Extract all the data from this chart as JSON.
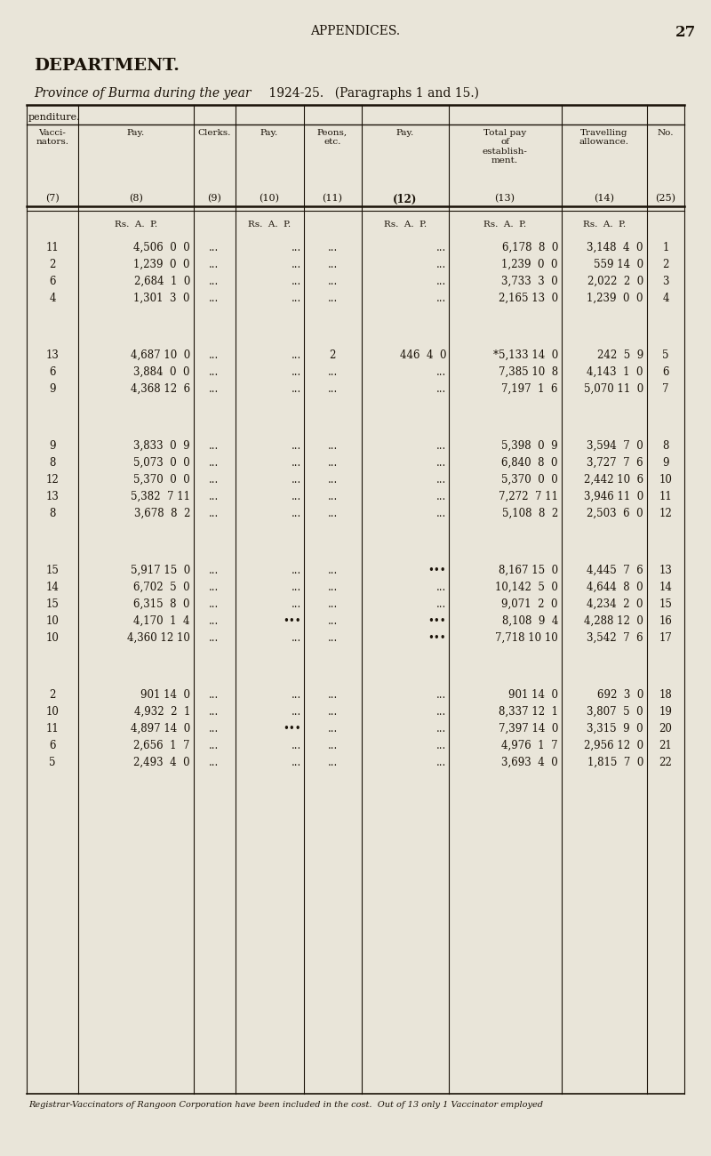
{
  "bg_color": "#e9e5d9",
  "text_color": "#1a1208",
  "line_color": "#1a1208",
  "page_title": "APPENDICES.",
  "page_number": "27",
  "section_title": "DEPARTMENT.",
  "subtitle_italic": "Province of Burma during the year",
  "subtitle_year": "1924-25.",
  "subtitle_rest": "  (Paragraphs 1 and 15.)",
  "partial_header": "penditure.",
  "footnote": "Registrar-Vaccinators of Rangoon Corporation have been included in the cost.  Out of 13 only 1 Vaccinator employed",
  "rows": [
    {
      "vac": "11",
      "pay8": "4,506  0  0",
      "cl9": "...",
      "pay10": "...",
      "pe11": "...",
      "pay12": "...",
      "total13": "6,178  8  0",
      "trav14": "3,148  4  0",
      "no": "1"
    },
    {
      "vac": "2",
      "pay8": "1,239  0  0",
      "cl9": "...",
      "pay10": "...",
      "pe11": "...",
      "pay12": "...",
      "total13": "1,239  0  0",
      "trav14": "559 14  0",
      "no": "2"
    },
    {
      "vac": "6",
      "pay8": "2,684  1  0",
      "cl9": "...",
      "pay10": "...",
      "pe11": "...",
      "pay12": "...",
      "total13": "3,733  3  0",
      "trav14": "2,022  2  0",
      "no": "3"
    },
    {
      "vac": "4",
      "pay8": "1,301  3  0",
      "cl9": "...",
      "pay10": "...",
      "pe11": "...",
      "pay12": "...",
      "total13": "2,165 13  0",
      "trav14": "1,239  0  0",
      "no": "4"
    },
    {
      "vac": "",
      "pay8": "",
      "cl9": "",
      "pay10": "",
      "pe11": "",
      "pay12": "",
      "total13": "",
      "trav14": "",
      "no": ""
    },
    {
      "vac": "13",
      "pay8": "4,687 10  0",
      "cl9": "...",
      "pay10": "...",
      "pe11": "2",
      "pay12": "446  4  0",
      "total13": "*5,133 14  0",
      "trav14": "242  5  9",
      "no": "5"
    },
    {
      "vac": "6",
      "pay8": "3,884  0  0",
      "cl9": "...",
      "pay10": "...",
      "pe11": "...",
      "pay12": "...",
      "total13": "7,385 10  8",
      "trav14": "4,143  1  0",
      "no": "6"
    },
    {
      "vac": "9",
      "pay8": "4,368 12  6",
      "cl9": "...",
      "pay10": "...",
      "pe11": "...",
      "pay12": "...",
      "total13": "7,197  1  6",
      "trav14": "5,070 11  0",
      "no": "7"
    },
    {
      "vac": "",
      "pay8": "",
      "cl9": "",
      "pay10": "",
      "pe11": "",
      "pay12": "",
      "total13": "",
      "trav14": "",
      "no": ""
    },
    {
      "vac": "9",
      "pay8": "3,833  0  9",
      "cl9": "...",
      "pay10": "...",
      "pe11": "...",
      "pay12": "...",
      "total13": "5,398  0  9",
      "trav14": "3,594  7  0",
      "no": "8"
    },
    {
      "vac": "8",
      "pay8": "5,073  0  0",
      "cl9": "...",
      "pay10": "...",
      "pe11": "...",
      "pay12": "...",
      "total13": "6,840  8  0",
      "trav14": "3,727  7  6",
      "no": "9"
    },
    {
      "vac": "12",
      "pay8": "5,370  0  0",
      "cl9": "...",
      "pay10": "...",
      "pe11": "...",
      "pay12": "...",
      "total13": "5,370  0  0",
      "trav14": "2,442 10  6",
      "no": "10"
    },
    {
      "vac": "13",
      "pay8": "5,382  7 11",
      "cl9": "...",
      "pay10": "...",
      "pe11": "...",
      "pay12": "...",
      "total13": "7,272  7 11",
      "trav14": "3,946 11  0",
      "no": "11"
    },
    {
      "vac": "8",
      "pay8": "3,678  8  2",
      "cl9": "...",
      "pay10": "...",
      "pe11": "...",
      "pay12": "...",
      "total13": "5,108  8  2",
      "trav14": "2,503  6  0",
      "no": "12"
    },
    {
      "vac": "",
      "pay8": "",
      "cl9": "",
      "pay10": "",
      "pe11": "",
      "pay12": "",
      "total13": "",
      "trav14": "",
      "no": ""
    },
    {
      "vac": "15",
      "pay8": "5,917 15  0",
      "cl9": "...",
      "pay10": "...",
      "pe11": "...",
      "pay12": "•••",
      "total13": "8,167 15  0",
      "trav14": "4,445  7  6",
      "no": "13"
    },
    {
      "vac": "14",
      "pay8": "6,702  5  0",
      "cl9": "...",
      "pay10": "...",
      "pe11": "...",
      "pay12": "...",
      "total13": "10,142  5  0",
      "trav14": "4,644  8  0",
      "no": "14"
    },
    {
      "vac": "15",
      "pay8": "6,315  8  0",
      "cl9": "...",
      "pay10": "...",
      "pe11": "...",
      "pay12": "...",
      "total13": "9,071  2  0",
      "trav14": "4,234  2  0",
      "no": "15"
    },
    {
      "vac": "10",
      "pay8": "4,170  1  4",
      "cl9": "...",
      "pay10": "•••",
      "pe11": "...",
      "pay12": "•••",
      "total13": "8,108  9  4",
      "trav14": "4,288 12  0",
      "no": "16"
    },
    {
      "vac": "10",
      "pay8": "4,360 12 10",
      "cl9": "...",
      "pay10": "...",
      "pe11": "...",
      "pay12": "•••",
      "total13": "7,718 10 10",
      "trav14": "3,542  7  6",
      "no": "17"
    },
    {
      "vac": "",
      "pay8": "",
      "cl9": "",
      "pay10": "",
      "pe11": "",
      "pay12": "",
      "total13": "",
      "trav14": "",
      "no": ""
    },
    {
      "vac": "2",
      "pay8": "901 14  0",
      "cl9": "...",
      "pay10": "...",
      "pe11": "...",
      "pay12": "...",
      "total13": "901 14  0",
      "trav14": "692  3  0",
      "no": "18"
    },
    {
      "vac": "10",
      "pay8": "4,932  2  1",
      "cl9": "...",
      "pay10": "...",
      "pe11": "...",
      "pay12": "...",
      "total13": "8,337 12  1",
      "trav14": "3,807  5  0",
      "no": "19"
    },
    {
      "vac": "11",
      "pay8": "4,897 14  0",
      "cl9": "...",
      "pay10": "•••",
      "pe11": "...",
      "pay12": "...",
      "total13": "7,397 14  0",
      "trav14": "3,315  9  0",
      "no": "20"
    },
    {
      "vac": "6",
      "pay8": "2,656  1  7",
      "cl9": "...",
      "pay10": "...",
      "pe11": "...",
      "pay12": "...",
      "total13": "4,976  1  7",
      "trav14": "2,956 12  0",
      "no": "21"
    },
    {
      "vac": "5",
      "pay8": "2,493  4  0",
      "cl9": "...",
      "pay10": "...",
      "pe11": "...",
      "pay12": "...",
      "total13": "3,693  4  0",
      "trav14": "1,815  7  0",
      "no": "22"
    }
  ]
}
